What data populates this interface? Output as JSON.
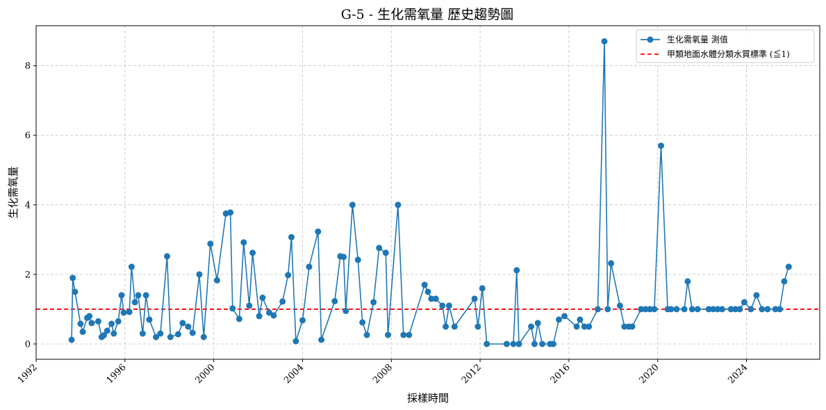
{
  "chart_data": {
    "type": "line",
    "title": "G-5 - 生化需氧量 歷史趨勢圖",
    "xlabel": "採樣時間",
    "ylabel": "生化需氧量",
    "xlim": [
      1992.0,
      2027.3
    ],
    "ylim": [
      -0.44,
      9.15
    ],
    "x_ticks": [
      1992,
      1996,
      2000,
      2004,
      2008,
      2012,
      2016,
      2020,
      2024
    ],
    "y_ticks": [
      0,
      2,
      4,
      6,
      8
    ],
    "grid": true,
    "legend_position": "upper-right",
    "series": [
      {
        "name": "生化需氧量 測值",
        "color": "#1f77b4",
        "marker": "circle",
        "points": [
          [
            1993.6,
            0.12
          ],
          [
            1993.65,
            1.9
          ],
          [
            1993.75,
            1.5
          ],
          [
            1994.0,
            0.58
          ],
          [
            1994.1,
            0.35
          ],
          [
            1994.3,
            0.75
          ],
          [
            1994.4,
            0.8
          ],
          [
            1994.5,
            0.6
          ],
          [
            1994.8,
            0.65
          ],
          [
            1994.95,
            0.2
          ],
          [
            1995.05,
            0.25
          ],
          [
            1995.2,
            0.38
          ],
          [
            1995.4,
            0.58
          ],
          [
            1995.5,
            0.3
          ],
          [
            1995.7,
            0.65
          ],
          [
            1995.85,
            1.4
          ],
          [
            1995.95,
            0.9
          ],
          [
            1996.2,
            0.92
          ],
          [
            1996.3,
            2.22
          ],
          [
            1996.45,
            1.2
          ],
          [
            1996.6,
            1.4
          ],
          [
            1996.8,
            0.3
          ],
          [
            1996.95,
            1.4
          ],
          [
            1997.1,
            0.7
          ],
          [
            1997.4,
            0.2
          ],
          [
            1997.6,
            0.3
          ],
          [
            1997.9,
            2.52
          ],
          [
            1998.05,
            0.2
          ],
          [
            1998.4,
            0.28
          ],
          [
            1998.6,
            0.6
          ],
          [
            1998.85,
            0.5
          ],
          [
            1999.05,
            0.32
          ],
          [
            1999.35,
            2.0
          ],
          [
            1999.55,
            0.2
          ],
          [
            1999.85,
            2.88
          ],
          [
            2000.15,
            1.83
          ],
          [
            2000.55,
            3.75
          ],
          [
            2000.75,
            3.78
          ],
          [
            2000.85,
            1.02
          ],
          [
            2001.15,
            0.72
          ],
          [
            2001.35,
            2.92
          ],
          [
            2001.6,
            1.1
          ],
          [
            2001.75,
            2.62
          ],
          [
            2002.05,
            0.8
          ],
          [
            2002.2,
            1.33
          ],
          [
            2002.5,
            0.9
          ],
          [
            2002.7,
            0.82
          ],
          [
            2003.1,
            1.22
          ],
          [
            2003.35,
            1.98
          ],
          [
            2003.5,
            3.07
          ],
          [
            2003.7,
            0.08
          ],
          [
            2004.0,
            0.68
          ],
          [
            2004.3,
            2.22
          ],
          [
            2004.7,
            3.23
          ],
          [
            2004.85,
            0.12
          ],
          [
            2005.45,
            1.23
          ],
          [
            2005.7,
            2.52
          ],
          [
            2005.85,
            2.5
          ],
          [
            2005.95,
            0.95
          ],
          [
            2006.25,
            4.0
          ],
          [
            2006.5,
            2.42
          ],
          [
            2006.7,
            0.62
          ],
          [
            2006.9,
            0.26
          ],
          [
            2007.2,
            1.2
          ],
          [
            2007.45,
            2.76
          ],
          [
            2007.75,
            2.62
          ],
          [
            2007.85,
            0.26
          ],
          [
            2008.3,
            4.0
          ],
          [
            2008.55,
            0.26
          ],
          [
            2008.8,
            0.26
          ],
          [
            2009.5,
            1.7
          ],
          [
            2009.65,
            1.5
          ],
          [
            2009.8,
            1.3
          ],
          [
            2010.0,
            1.3
          ],
          [
            2010.3,
            1.1
          ],
          [
            2010.45,
            0.5
          ],
          [
            2010.6,
            1.1
          ],
          [
            2010.85,
            0.5
          ],
          [
            2011.75,
            1.3
          ],
          [
            2011.9,
            0.5
          ],
          [
            2012.1,
            1.6
          ],
          [
            2012.3,
            0.0
          ],
          [
            2013.2,
            0.0
          ],
          [
            2013.5,
            0.0
          ],
          [
            2013.65,
            2.12
          ],
          [
            2013.75,
            0.0
          ],
          [
            2014.3,
            0.5
          ],
          [
            2014.45,
            0.0
          ],
          [
            2014.6,
            0.6
          ],
          [
            2014.8,
            0.0
          ],
          [
            2015.15,
            0.0
          ],
          [
            2015.3,
            0.0
          ],
          [
            2015.55,
            0.7
          ],
          [
            2015.8,
            0.8
          ],
          [
            2016.35,
            0.5
          ],
          [
            2016.5,
            0.7
          ],
          [
            2016.7,
            0.5
          ],
          [
            2016.9,
            0.5
          ],
          [
            2017.3,
            1.0
          ],
          [
            2017.6,
            8.7
          ],
          [
            2017.75,
            1.0
          ],
          [
            2017.9,
            2.32
          ],
          [
            2018.3,
            1.1
          ],
          [
            2018.5,
            0.5
          ],
          [
            2018.7,
            0.5
          ],
          [
            2018.85,
            0.5
          ],
          [
            2019.25,
            1.0
          ],
          [
            2019.45,
            1.0
          ],
          [
            2019.65,
            1.0
          ],
          [
            2019.85,
            1.0
          ],
          [
            2020.15,
            5.7
          ],
          [
            2020.45,
            1.0
          ],
          [
            2020.6,
            1.0
          ],
          [
            2020.85,
            1.0
          ],
          [
            2021.2,
            1.0
          ],
          [
            2021.35,
            1.8
          ],
          [
            2021.55,
            1.0
          ],
          [
            2021.8,
            1.0
          ],
          [
            2022.3,
            1.0
          ],
          [
            2022.5,
            1.0
          ],
          [
            2022.7,
            1.0
          ],
          [
            2022.9,
            1.0
          ],
          [
            2023.3,
            1.0
          ],
          [
            2023.5,
            1.0
          ],
          [
            2023.7,
            1.0
          ],
          [
            2023.9,
            1.2
          ],
          [
            2024.2,
            1.0
          ],
          [
            2024.45,
            1.4
          ],
          [
            2024.7,
            1.0
          ],
          [
            2024.95,
            1.0
          ],
          [
            2025.3,
            1.0
          ],
          [
            2025.5,
            1.0
          ],
          [
            2025.7,
            1.8
          ],
          [
            2025.9,
            2.22
          ]
        ]
      }
    ],
    "reference_lines": [
      {
        "name": "甲類地面水體分類水質標準 (≦1)",
        "value": 1,
        "color": "#ff0000",
        "style": "dashed"
      }
    ]
  }
}
